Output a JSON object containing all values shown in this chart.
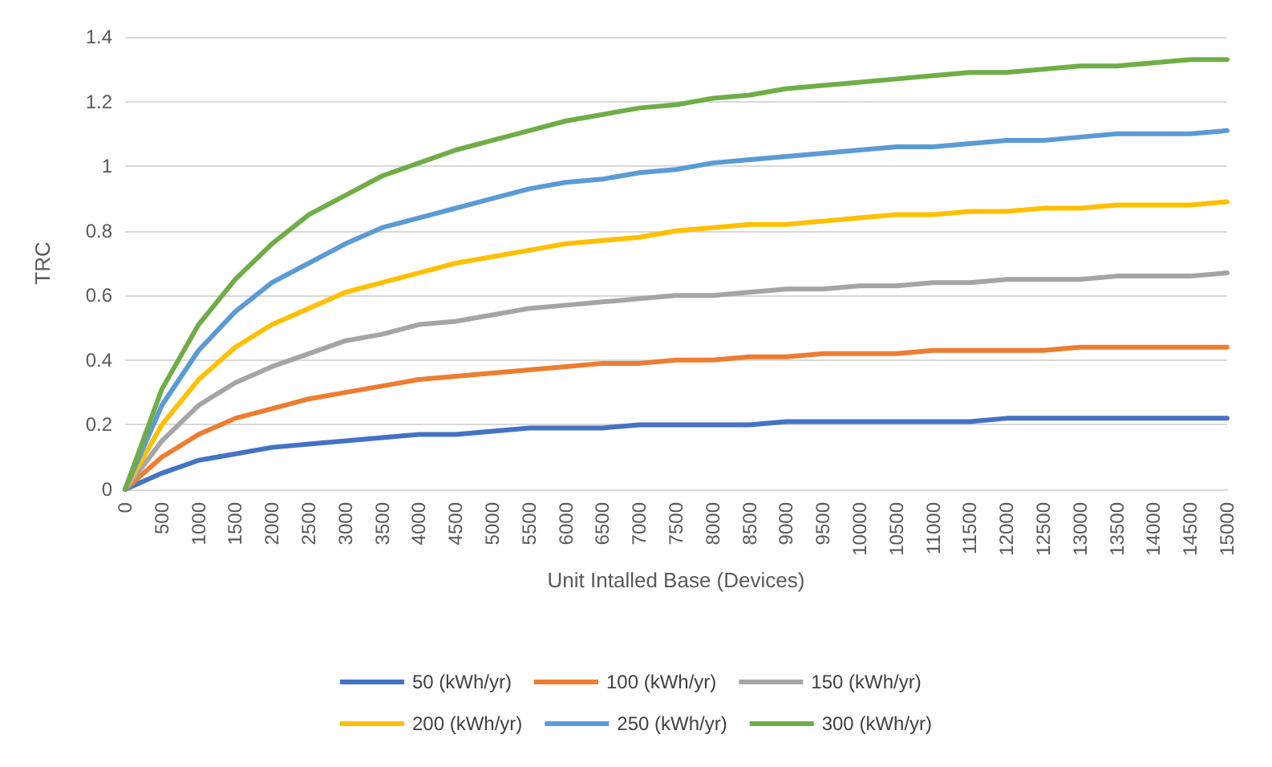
{
  "chart_data": {
    "type": "line",
    "xlabel": "Unit Intalled Base (Devices)",
    "ylabel": "TRC",
    "categories": [
      "0",
      "500",
      "1000",
      "1500",
      "2000",
      "2500",
      "3000",
      "3500",
      "4000",
      "4500",
      "5000",
      "5500",
      "6000",
      "6500",
      "7000",
      "7500",
      "8000",
      "8500",
      "9000",
      "9500",
      "10000",
      "10500",
      "11000",
      "11500",
      "12000",
      "12500",
      "13000",
      "13500",
      "14000",
      "14500",
      "15000"
    ],
    "series": [
      {
        "name": "50 (kWh/yr)",
        "color": "#4472c4",
        "values": [
          0,
          0.05,
          0.09,
          0.11,
          0.13,
          0.14,
          0.15,
          0.16,
          0.17,
          0.17,
          0.18,
          0.19,
          0.19,
          0.19,
          0.2,
          0.2,
          0.2,
          0.2,
          0.21,
          0.21,
          0.21,
          0.21,
          0.21,
          0.21,
          0.22,
          0.22,
          0.22,
          0.22,
          0.22,
          0.22,
          0.22
        ]
      },
      {
        "name": "100 (kWh/yr)",
        "color": "#ed7d31",
        "values": [
          0,
          0.1,
          0.17,
          0.22,
          0.25,
          0.28,
          0.3,
          0.32,
          0.34,
          0.35,
          0.36,
          0.37,
          0.38,
          0.39,
          0.39,
          0.4,
          0.4,
          0.41,
          0.41,
          0.42,
          0.42,
          0.42,
          0.43,
          0.43,
          0.43,
          0.43,
          0.44,
          0.44,
          0.44,
          0.44,
          0.44
        ]
      },
      {
        "name": "150 (kWh/yr)",
        "color": "#a5a5a5",
        "values": [
          0,
          0.15,
          0.26,
          0.33,
          0.38,
          0.42,
          0.46,
          0.48,
          0.51,
          0.52,
          0.54,
          0.56,
          0.57,
          0.58,
          0.59,
          0.6,
          0.6,
          0.61,
          0.62,
          0.62,
          0.63,
          0.63,
          0.64,
          0.64,
          0.65,
          0.65,
          0.65,
          0.66,
          0.66,
          0.66,
          0.67
        ]
      },
      {
        "name": "200 (kWh/yr)",
        "color": "#ffc000",
        "values": [
          0,
          0.2,
          0.34,
          0.44,
          0.51,
          0.56,
          0.61,
          0.64,
          0.67,
          0.7,
          0.72,
          0.74,
          0.76,
          0.77,
          0.78,
          0.8,
          0.81,
          0.82,
          0.82,
          0.83,
          0.84,
          0.85,
          0.85,
          0.86,
          0.86,
          0.87,
          0.87,
          0.88,
          0.88,
          0.88,
          0.89
        ]
      },
      {
        "name": "250 (kWh/yr)",
        "color": "#5b9bd5",
        "values": [
          0,
          0.26,
          0.43,
          0.55,
          0.64,
          0.7,
          0.76,
          0.81,
          0.84,
          0.87,
          0.9,
          0.93,
          0.95,
          0.96,
          0.98,
          0.99,
          1.01,
          1.02,
          1.03,
          1.04,
          1.05,
          1.06,
          1.06,
          1.07,
          1.08,
          1.08,
          1.09,
          1.1,
          1.1,
          1.1,
          1.11
        ]
      },
      {
        "name": "300 (kWh/yr)",
        "color": "#70ad47",
        "values": [
          0,
          0.31,
          0.51,
          0.65,
          0.76,
          0.85,
          0.91,
          0.97,
          1.01,
          1.05,
          1.08,
          1.11,
          1.14,
          1.16,
          1.18,
          1.19,
          1.21,
          1.22,
          1.24,
          1.25,
          1.26,
          1.27,
          1.28,
          1.29,
          1.29,
          1.3,
          1.31,
          1.31,
          1.32,
          1.33,
          1.33
        ]
      }
    ],
    "ylim": [
      0,
      1.4
    ],
    "yticks": [
      0,
      0.2,
      0.4,
      0.6,
      0.8,
      1,
      1.2,
      1.4
    ],
    "grid": "y",
    "legend": "bottom",
    "marker": "none",
    "line_style": "solid"
  }
}
